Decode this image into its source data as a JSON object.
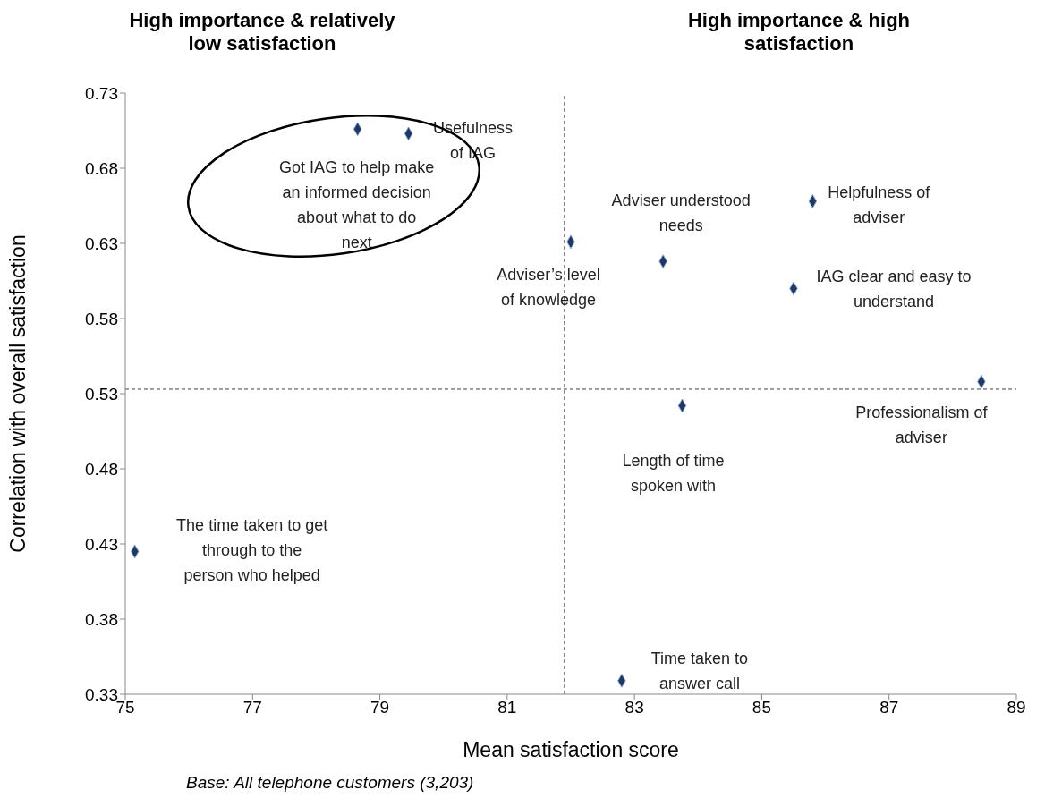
{
  "chart_data": {
    "type": "scatter",
    "xlabel": "Mean satisfaction score",
    "ylabel": "Correlation with overall satisfaction",
    "x": [
      78.65,
      79.45,
      82.0,
      83.45,
      85.8,
      85.5,
      88.45,
      83.75,
      75.15,
      82.8
    ],
    "values": [
      0.706,
      0.703,
      0.631,
      0.618,
      0.658,
      0.6,
      0.538,
      0.522,
      0.425,
      0.339
    ],
    "color": "#1f3864",
    "marker": "diamond",
    "xlim": [
      75,
      89
    ],
    "xticks": [
      75,
      77,
      79,
      81,
      83,
      85,
      87,
      89
    ],
    "ylim": [
      0.33,
      0.73
    ],
    "yticks": [
      0.33,
      0.38,
      0.43,
      0.48,
      0.53,
      0.58,
      0.63,
      0.68,
      0.73
    ],
    "grid": false,
    "ref_lines": [
      {
        "axis": "x",
        "value": 81.9,
        "color": "#404040",
        "line_style": "dashed"
      },
      {
        "axis": "y",
        "value": 0.533,
        "color": "#404040",
        "line_style": "dashed"
      }
    ],
    "annotations": [
      "High importance & relatively low satisfaction",
      "High importance & high satisfaction",
      "Base: All telephone customers (3,203)",
      {
        "text": "Got IAG to help make\nan informed decision\nabout what to do\nnext",
        "x": 78.65,
        "y": 0.706
      },
      {
        "text": "Usefulness\nof IAG",
        "x": 79.45,
        "y": 0.703
      },
      {
        "text": "Adviser’s level\nof knowledge",
        "x": 82.0,
        "y": 0.631
      },
      {
        "text": "Adviser understood\nneeds",
        "x": 83.45,
        "y": 0.618
      },
      {
        "text": "Helpfulness of\nadviser",
        "x": 85.8,
        "y": 0.658
      },
      {
        "text": "IAG clear and easy to\nunderstand",
        "x": 85.5,
        "y": 0.6
      },
      {
        "text": "Professionalism of\nadviser",
        "x": 88.45,
        "y": 0.538
      },
      {
        "text": "Length of time\nspoken with",
        "x": 83.75,
        "y": 0.522
      },
      {
        "text": "The time taken to get\nthrough to the\nperson who helped",
        "x": 75.15,
        "y": 0.425
      },
      {
        "text": "Time taken to\nanswer call",
        "x": 82.8,
        "y": 0.339
      }
    ]
  }
}
